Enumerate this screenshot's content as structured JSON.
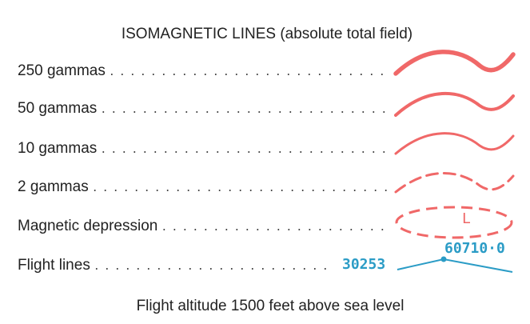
{
  "title": "ISOMAGNETIC  LINES (absolute total field)",
  "items": [
    {
      "label": "250 gammas"
    },
    {
      "label": "50 gammas"
    },
    {
      "label": "10 gammas"
    },
    {
      "label": "2 gammas"
    },
    {
      "label": "Magnetic depression"
    },
    {
      "label": "Flight lines"
    }
  ],
  "depression_symbol": "L",
  "flight_lines": {
    "start_label": "30253",
    "end_label": "60710·0"
  },
  "footer": "Flight altitude 1500 feet above sea level"
}
